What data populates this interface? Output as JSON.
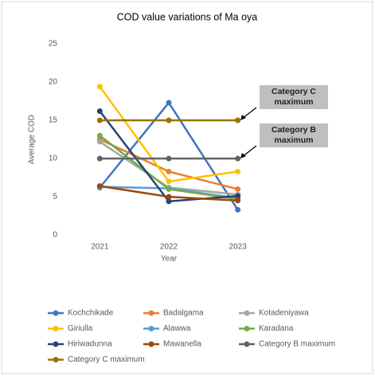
{
  "chart_data": {
    "type": "line",
    "title": "COD value variations of Ma oya",
    "x_label": "Year",
    "y_label": "Average COD",
    "categories": [
      "2021",
      "2022",
      "2023"
    ],
    "ylim": [
      0,
      25
    ],
    "yticks": [
      0,
      5,
      10,
      15,
      20,
      25
    ],
    "grid": false,
    "legend": "bottom",
    "series": [
      {
        "name": "Kochchikade",
        "color": "#4472c4",
        "values": [
          6.2,
          17.3,
          3.3
        ]
      },
      {
        "name": "Badalgama",
        "color": "#ed7d31",
        "values": [
          12.5,
          8.3,
          6.0
        ]
      },
      {
        "name": "Kotadeniyawa",
        "color": "#a5a5a5",
        "values": [
          12.2,
          6.2,
          5.3
        ]
      },
      {
        "name": "Giriulla",
        "color": "#ffc000",
        "values": [
          19.4,
          7.0,
          8.3
        ]
      },
      {
        "name": "Alawwa",
        "color": "#5b9bd5",
        "values": [
          6.3,
          6.1,
          4.8
        ]
      },
      {
        "name": "Karadana",
        "color": "#70ad47",
        "values": [
          13.0,
          6.0,
          4.7
        ]
      },
      {
        "name": "Hiriwadunna",
        "color": "#264478",
        "values": [
          16.2,
          4.4,
          5.1
        ]
      },
      {
        "name": "Mawanella",
        "color": "#9e480e",
        "values": [
          6.4,
          5.0,
          4.5
        ]
      },
      {
        "name": "Category B maximum",
        "color": "#636363",
        "values": [
          10,
          10,
          10
        ]
      },
      {
        "name": "Category C maximum",
        "color": "#997300",
        "values": [
          15,
          15,
          15
        ]
      }
    ],
    "annotations": [
      "Category C maximum",
      "Category B maximum"
    ]
  }
}
